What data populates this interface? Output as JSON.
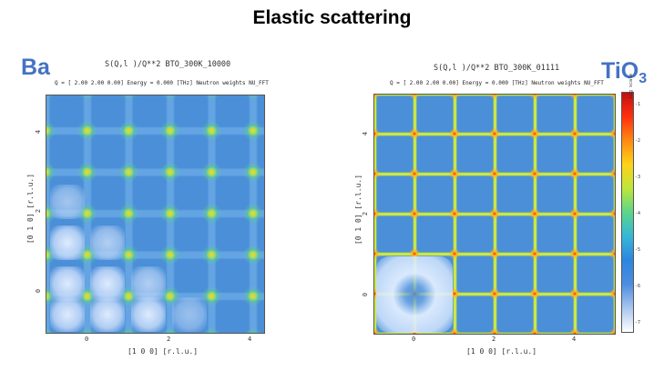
{
  "title": "Elastic scattering",
  "left": {
    "element_label": "Ba",
    "plot_title": "S(Q,l )/Q**2   BTO_300K_10000",
    "plot_subtitle": "Q = [  2.00   2.00   0.00]    Energy = 0.000 [THz]   Neutron weights   NU_FFT",
    "xlabel": "[1 0 0] [r.l.u.]",
    "ylabel": "[0 1 0] [r.l.u.]",
    "x_ticks": [
      "0",
      "2",
      "4"
    ],
    "y_ticks": [
      "0",
      "2",
      "4"
    ]
  },
  "right": {
    "element_label": "TiO",
    "element_subscript": "3",
    "plot_title": "S(Q,l )/Q**2   BTO_300K_01111",
    "plot_subtitle": "Q = [  2.00   2.00   0.00]    Energy = 0.000 [THz]   Neutron weights   NU_FFT",
    "xlabel": "[1 0 0] [r.l.u.]",
    "ylabel": "[0 1 0] [r.l.u.]",
    "x_ticks": [
      "0",
      "2",
      "4"
    ],
    "y_ticks": [
      "0",
      "2",
      "4"
    ],
    "colorbar_label": "Log scale",
    "colorbar_ticks": [
      "-1",
      "-2",
      "-3",
      "-4",
      "-5",
      "-6",
      "-7"
    ]
  },
  "colors": {
    "label_blue": "#4472c4",
    "map_background": "#4a8fd8",
    "peak_hot": "#e0251a",
    "line_yellow_green": "#d9f040"
  }
}
